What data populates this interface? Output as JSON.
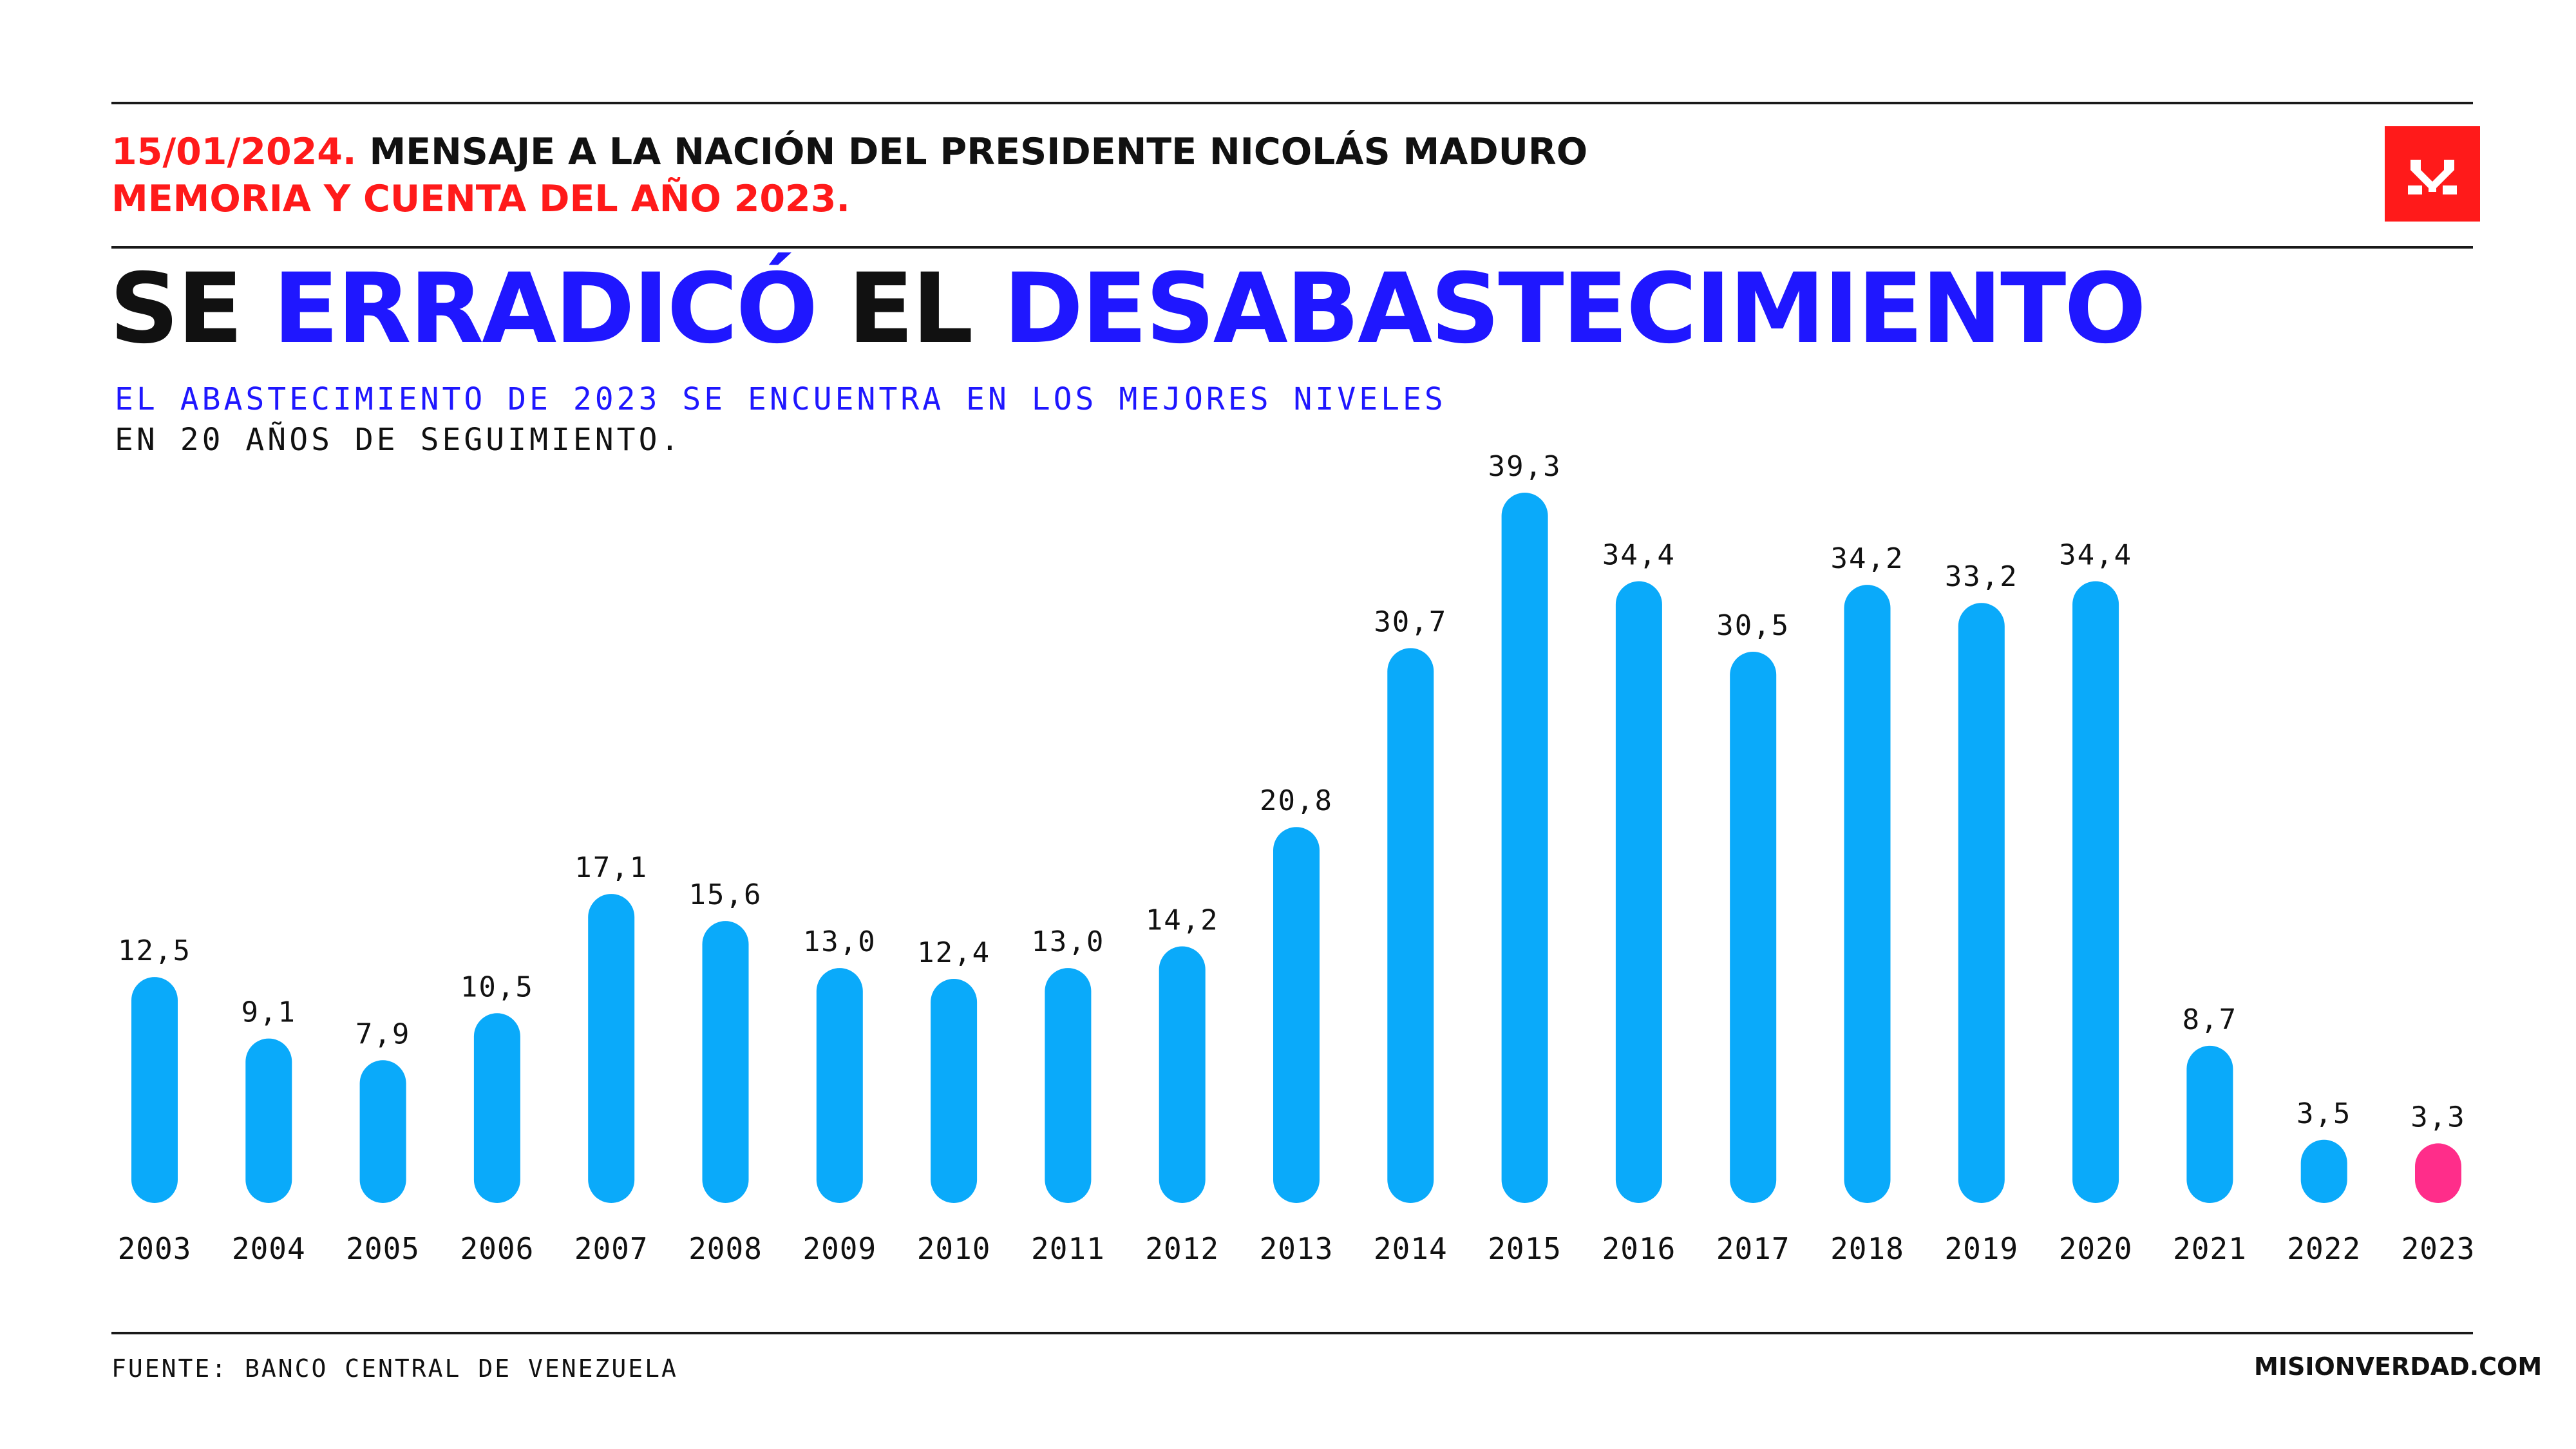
{
  "header": {
    "date": "15/01/2024.",
    "line1_rest": "MENSAJE A LA NACIÓN DEL PRESIDENTE NICOLÁS MADURO",
    "line2": "MEMORIA Y CUENTA DEL AÑO 2023."
  },
  "title": {
    "part1": "SE",
    "part2": "ERRADICÓ",
    "part3": "EL",
    "part4": "DESABASTECIMIENTO"
  },
  "subtitle": {
    "line1": "EL ABASTECIMIENTO DE 2023 SE ENCUENTRA EN LOS MEJORES NIVELES",
    "line2": "EN 20 AÑOS DE SEGUIMIENTO."
  },
  "logo": {
    "icon": "misionverdad-logo-icon"
  },
  "footer": {
    "source": "FUENTE: BANCO CENTRAL DE VENEZUELA",
    "site": "MISIONVERDAD.COM"
  },
  "colors": {
    "bar": "#0aaafa",
    "highlight": "#ff2d8a",
    "accent_red": "#ff1a1a",
    "accent_blue": "#1f17ff"
  },
  "chart_data": {
    "type": "bar",
    "title": "SE ERRADICÓ EL DESABASTECIMIENTO",
    "categories": [
      "2003",
      "2004",
      "2005",
      "2006",
      "2007",
      "2008",
      "2009",
      "2010",
      "2011",
      "2012",
      "2013",
      "2014",
      "2015",
      "2016",
      "2017",
      "2018",
      "2019",
      "2020",
      "2021",
      "2022",
      "2023"
    ],
    "values": [
      12.5,
      9.1,
      7.9,
      10.5,
      17.1,
      15.6,
      13.0,
      12.4,
      13.0,
      14.2,
      20.8,
      30.7,
      39.3,
      34.4,
      30.5,
      34.2,
      33.2,
      34.4,
      8.7,
      3.5,
      3.3
    ],
    "value_labels": [
      "12,5",
      "9,1",
      "7,9",
      "10,5",
      "17,1",
      "15,6",
      "13,0",
      "12,4",
      "13,0",
      "14,2",
      "20,8",
      "30,7",
      "39,3",
      "34,4",
      "30,5",
      "34,2",
      "33,2",
      "34,4",
      "8,7",
      "3,5",
      "3,3"
    ],
    "highlight_index": 20,
    "ylim": [
      0,
      39.3
    ],
    "grid": false,
    "xlabel": "",
    "ylabel": ""
  }
}
